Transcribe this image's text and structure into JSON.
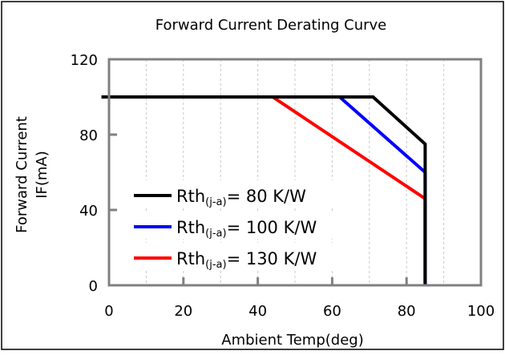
{
  "chart_data": {
    "type": "line",
    "title": "Forward Current Derating Curve",
    "xlabel": "Ambient Temp(deg)",
    "ylabel_line1": "Forward Current",
    "ylabel_line2": "IF(mA)",
    "xlim": [
      0,
      100
    ],
    "ylim": [
      0,
      120
    ],
    "x_ticks": [
      0,
      20,
      40,
      60,
      80,
      100
    ],
    "y_ticks": [
      0,
      40,
      80,
      120
    ],
    "grid": "vertical",
    "legend_position": "lower-left",
    "series": [
      {
        "name_main": "Rth",
        "name_sub": "(j-a)",
        "name_value": "=  80  K/W",
        "color": "#000000",
        "points": [
          [
            -2,
            100
          ],
          [
            71,
            100
          ],
          [
            85,
            75
          ],
          [
            85,
            0
          ]
        ]
      },
      {
        "name_main": "Rth",
        "name_sub": "(j-a)",
        "name_value": "=  100  K/W",
        "color": "#0000ff",
        "points": [
          [
            -2,
            100
          ],
          [
            62,
            100
          ],
          [
            85,
            60
          ],
          [
            85,
            0
          ]
        ]
      },
      {
        "name_main": "Rth",
        "name_sub": "(j-a)",
        "name_value": "=  130  K/W",
        "color": "#ff0000",
        "points": [
          [
            -2,
            100
          ],
          [
            44,
            100
          ],
          [
            85,
            46
          ],
          [
            85,
            0
          ]
        ]
      }
    ]
  }
}
